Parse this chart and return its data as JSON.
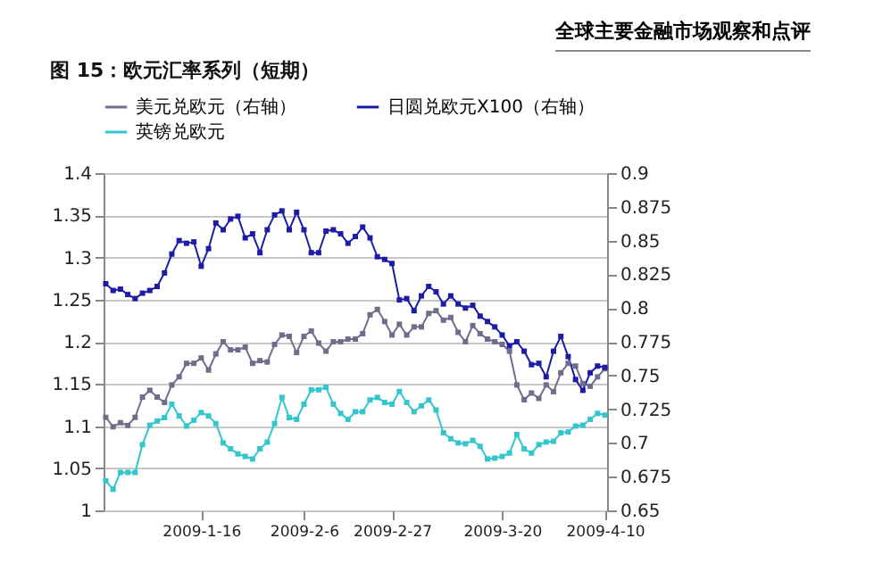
{
  "chart_data": {
    "type": "line",
    "title": "图 15：欧元汇率系列（短期）",
    "annotations": [
      "全球主要金融市场观察和点评"
    ],
    "categories": [
      null,
      null,
      null,
      null,
      null,
      null,
      null,
      null,
      null,
      null,
      null,
      null,
      null,
      "2009-1-16",
      null,
      null,
      null,
      null,
      null,
      null,
      null,
      null,
      null,
      null,
      null,
      null,
      null,
      "2009-2-6",
      null,
      null,
      null,
      null,
      null,
      null,
      null,
      null,
      null,
      null,
      null,
      "2009-2-27",
      null,
      null,
      null,
      null,
      null,
      null,
      null,
      null,
      null,
      null,
      null,
      null,
      null,
      null,
      "2009-3-20",
      null,
      null,
      null,
      null,
      null,
      null,
      null,
      null,
      null,
      null,
      null,
      null,
      null,
      "2009-4-10"
    ],
    "series": [
      {
        "name": "美元兑欧元（右轴）",
        "color": "#6e6e8c",
        "axis": "y2",
        "values": [
          0.719,
          0.712,
          0.715,
          0.713,
          0.719,
          0.734,
          0.739,
          0.734,
          0.73,
          0.743,
          0.749,
          0.759,
          0.759,
          0.763,
          0.754,
          0.766,
          0.775,
          0.769,
          0.769,
          0.771,
          0.759,
          0.761,
          0.76,
          0.773,
          0.78,
          0.779,
          0.767,
          0.779,
          0.783,
          0.774,
          0.768,
          0.775,
          0.775,
          0.777,
          0.777,
          0.781,
          0.795,
          0.799,
          0.79,
          0.78,
          0.788,
          0.78,
          0.786,
          0.786,
          0.796,
          0.798,
          0.791,
          0.793,
          0.782,
          0.775,
          0.787,
          0.781,
          0.777,
          0.775,
          0.773,
          0.768,
          0.743,
          0.732,
          0.737,
          0.733,
          0.743,
          0.738,
          0.752,
          0.759,
          0.757,
          0.744,
          0.742,
          0.749,
          0.755
        ]
      },
      {
        "name": "日圆兑欧元X100（右轴）",
        "color": "#1c1ca6",
        "axis": "y2",
        "values": [
          0.818,
          0.813,
          0.814,
          0.81,
          0.807,
          0.811,
          0.813,
          0.816,
          0.826,
          0.84,
          0.85,
          0.848,
          0.849,
          0.831,
          0.844,
          0.863,
          0.858,
          0.866,
          0.868,
          0.852,
          0.855,
          0.841,
          0.858,
          0.869,
          0.872,
          0.858,
          0.871,
          0.858,
          0.841,
          0.841,
          0.857,
          0.858,
          0.855,
          0.848,
          0.853,
          0.86,
          0.852,
          0.838,
          0.836,
          0.833,
          0.806,
          0.807,
          0.798,
          0.809,
          0.816,
          0.812,
          0.803,
          0.809,
          0.803,
          0.8,
          0.802,
          0.794,
          0.79,
          0.786,
          0.78,
          0.772,
          0.775,
          0.768,
          0.758,
          0.759,
          0.749,
          0.768,
          0.779,
          0.764,
          0.747,
          0.739,
          0.752,
          0.757,
          0.756
        ]
      },
      {
        "name": "英镑兑欧元",
        "color": "#33c6cc",
        "values": [
          1.035,
          1.025,
          1.045,
          1.045,
          1.045,
          1.078,
          1.101,
          1.106,
          1.11,
          1.126,
          1.112,
          1.1,
          1.107,
          1.116,
          1.112,
          1.103,
          1.08,
          1.073,
          1.067,
          1.064,
          1.061,
          1.073,
          1.081,
          1.103,
          1.134,
          1.11,
          1.108,
          1.126,
          1.143,
          1.143,
          1.146,
          1.126,
          1.115,
          1.108,
          1.117,
          1.117,
          1.131,
          1.134,
          1.128,
          1.126,
          1.141,
          1.128,
          1.117,
          1.124,
          1.131,
          1.119,
          1.092,
          1.085,
          1.08,
          1.079,
          1.083,
          1.076,
          1.061,
          1.062,
          1.064,
          1.068,
          1.09,
          1.073,
          1.068,
          1.078,
          1.081,
          1.082,
          1.092,
          1.093,
          1.1,
          1.101,
          1.108,
          1.115,
          1.113
        ]
      }
    ],
    "ylim": [
      1,
      1.4
    ],
    "yticks": [
      1,
      1.05,
      1.1,
      1.15,
      1.2,
      1.25,
      1.3,
      1.35,
      1.4
    ],
    "y2lim": [
      0.65,
      0.9
    ],
    "y2ticks": [
      0.65,
      0.675,
      0.7,
      0.725,
      0.75,
      0.775,
      0.8,
      0.825,
      0.85,
      0.875,
      0.9
    ],
    "grid": "y",
    "legend": "top",
    "marker": "square"
  }
}
